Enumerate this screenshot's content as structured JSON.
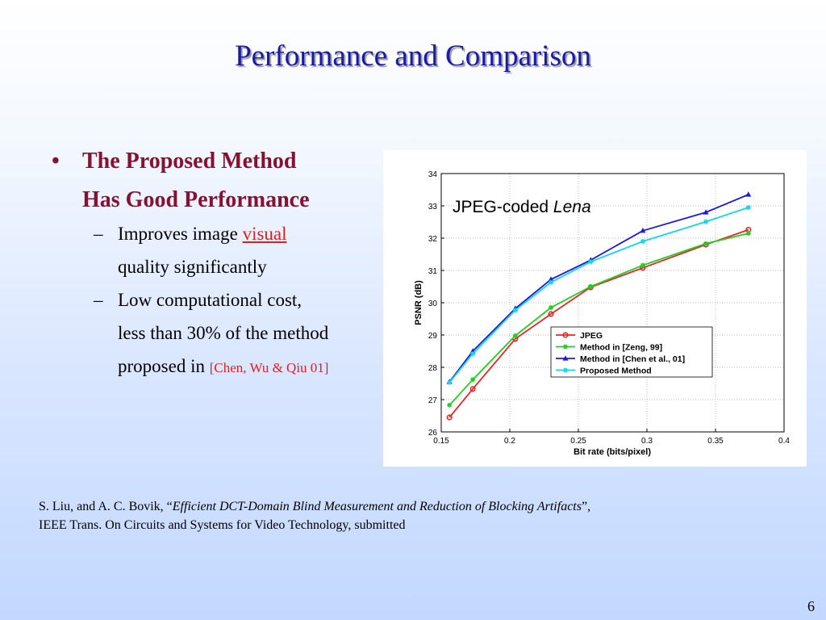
{
  "slide": {
    "title": "Performance and Comparison",
    "page_number": "6"
  },
  "bullets": {
    "main_line1": "The Proposed Method",
    "main_line2": "Has Good Performance",
    "sub1_line1_pre": "Improves image ",
    "sub1_line1_link": "visual",
    "sub1_line2": "quality significantly",
    "sub2_line1": "Low computational cost,",
    "sub2_line2": "less than 30% of the method",
    "sub2_line3_pre": "proposed in ",
    "sub2_line3_cite": "[Chen, Wu & Qiu  01]"
  },
  "reference": {
    "line1_pre": "S. Liu, and A. C. Bovik, “",
    "line1_italic": "Efficient DCT-Domain Blind Measurement  and Reduction of Blocking Artifacts",
    "line1_post": "”,",
    "line2": "IEEE Trans. On Circuits and Systems for Video Technology, submitted"
  },
  "colors": {
    "title": "#1a1aa8",
    "bullet": "#8a1030",
    "link": "#e02020"
  },
  "chart_data": {
    "type": "line",
    "annotation_pre": "JPEG-coded ",
    "annotation_italic": "Lena",
    "xlabel": "Bit rate (bits/pixel)",
    "ylabel": "PSNR (dB)",
    "xlim": [
      0.15,
      0.4
    ],
    "ylim": [
      26,
      34
    ],
    "xticks": [
      "0.15",
      "0.2",
      "0.25",
      "0.3",
      "0.35",
      "0.4"
    ],
    "yticks": [
      "26",
      "27",
      "28",
      "29",
      "30",
      "31",
      "32",
      "33",
      "34"
    ],
    "grid": true,
    "legend_position": "bottom-right",
    "series": [
      {
        "name": "JPEG",
        "color": "#e8262a",
        "marker": "circle",
        "x": [
          0.156,
          0.173,
          0.204,
          0.23,
          0.259,
          0.297,
          0.343,
          0.374
        ],
        "y": [
          26.45,
          27.33,
          28.88,
          29.65,
          30.48,
          31.08,
          31.8,
          32.26
        ]
      },
      {
        "name": "Method in [Zeng, 99]",
        "color": "#1fd11f",
        "marker": "star",
        "x": [
          0.156,
          0.173,
          0.204,
          0.23,
          0.259,
          0.297,
          0.343,
          0.374
        ],
        "y": [
          26.83,
          27.62,
          28.98,
          29.85,
          30.5,
          31.16,
          31.83,
          32.15
        ]
      },
      {
        "name": "Method in [Chen et al., 01]",
        "color": "#1a1ae0",
        "marker": "triangle",
        "x": [
          0.156,
          0.173,
          0.204,
          0.23,
          0.259,
          0.297,
          0.343,
          0.374
        ],
        "y": [
          27.55,
          28.5,
          29.82,
          30.72,
          31.32,
          32.23,
          32.8,
          33.35
        ]
      },
      {
        "name": "Proposed Method",
        "color": "#12d8ef",
        "marker": "star",
        "x": [
          0.156,
          0.173,
          0.204,
          0.23,
          0.259,
          0.297,
          0.343,
          0.374
        ],
        "y": [
          27.53,
          28.42,
          29.77,
          30.63,
          31.27,
          31.9,
          32.51,
          32.95
        ]
      }
    ]
  }
}
